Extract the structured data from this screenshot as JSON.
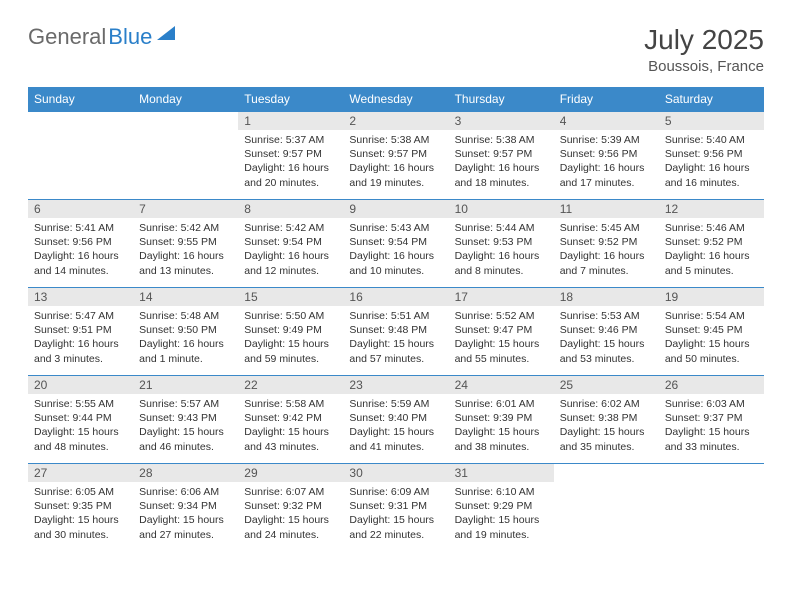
{
  "brand": {
    "part1": "General",
    "part2": "Blue"
  },
  "title": "July 2025",
  "location": "Boussois, France",
  "colors": {
    "header_bg": "#3b89c9",
    "header_text": "#ffffff",
    "daynum_bg": "#e8e8e8",
    "border": "#3b89c9",
    "logo_gray": "#6a6a6a",
    "logo_blue": "#2a7fc9"
  },
  "columns": [
    "Sunday",
    "Monday",
    "Tuesday",
    "Wednesday",
    "Thursday",
    "Friday",
    "Saturday"
  ],
  "weeks": [
    [
      {
        "n": "",
        "lines": []
      },
      {
        "n": "",
        "lines": []
      },
      {
        "n": "1",
        "lines": [
          "Sunrise: 5:37 AM",
          "Sunset: 9:57 PM",
          "Daylight: 16 hours",
          "and 20 minutes."
        ]
      },
      {
        "n": "2",
        "lines": [
          "Sunrise: 5:38 AM",
          "Sunset: 9:57 PM",
          "Daylight: 16 hours",
          "and 19 minutes."
        ]
      },
      {
        "n": "3",
        "lines": [
          "Sunrise: 5:38 AM",
          "Sunset: 9:57 PM",
          "Daylight: 16 hours",
          "and 18 minutes."
        ]
      },
      {
        "n": "4",
        "lines": [
          "Sunrise: 5:39 AM",
          "Sunset: 9:56 PM",
          "Daylight: 16 hours",
          "and 17 minutes."
        ]
      },
      {
        "n": "5",
        "lines": [
          "Sunrise: 5:40 AM",
          "Sunset: 9:56 PM",
          "Daylight: 16 hours",
          "and 16 minutes."
        ]
      }
    ],
    [
      {
        "n": "6",
        "lines": [
          "Sunrise: 5:41 AM",
          "Sunset: 9:56 PM",
          "Daylight: 16 hours",
          "and 14 minutes."
        ]
      },
      {
        "n": "7",
        "lines": [
          "Sunrise: 5:42 AM",
          "Sunset: 9:55 PM",
          "Daylight: 16 hours",
          "and 13 minutes."
        ]
      },
      {
        "n": "8",
        "lines": [
          "Sunrise: 5:42 AM",
          "Sunset: 9:54 PM",
          "Daylight: 16 hours",
          "and 12 minutes."
        ]
      },
      {
        "n": "9",
        "lines": [
          "Sunrise: 5:43 AM",
          "Sunset: 9:54 PM",
          "Daylight: 16 hours",
          "and 10 minutes."
        ]
      },
      {
        "n": "10",
        "lines": [
          "Sunrise: 5:44 AM",
          "Sunset: 9:53 PM",
          "Daylight: 16 hours",
          "and 8 minutes."
        ]
      },
      {
        "n": "11",
        "lines": [
          "Sunrise: 5:45 AM",
          "Sunset: 9:52 PM",
          "Daylight: 16 hours",
          "and 7 minutes."
        ]
      },
      {
        "n": "12",
        "lines": [
          "Sunrise: 5:46 AM",
          "Sunset: 9:52 PM",
          "Daylight: 16 hours",
          "and 5 minutes."
        ]
      }
    ],
    [
      {
        "n": "13",
        "lines": [
          "Sunrise: 5:47 AM",
          "Sunset: 9:51 PM",
          "Daylight: 16 hours",
          "and 3 minutes."
        ]
      },
      {
        "n": "14",
        "lines": [
          "Sunrise: 5:48 AM",
          "Sunset: 9:50 PM",
          "Daylight: 16 hours",
          "and 1 minute."
        ]
      },
      {
        "n": "15",
        "lines": [
          "Sunrise: 5:50 AM",
          "Sunset: 9:49 PM",
          "Daylight: 15 hours",
          "and 59 minutes."
        ]
      },
      {
        "n": "16",
        "lines": [
          "Sunrise: 5:51 AM",
          "Sunset: 9:48 PM",
          "Daylight: 15 hours",
          "and 57 minutes."
        ]
      },
      {
        "n": "17",
        "lines": [
          "Sunrise: 5:52 AM",
          "Sunset: 9:47 PM",
          "Daylight: 15 hours",
          "and 55 minutes."
        ]
      },
      {
        "n": "18",
        "lines": [
          "Sunrise: 5:53 AM",
          "Sunset: 9:46 PM",
          "Daylight: 15 hours",
          "and 53 minutes."
        ]
      },
      {
        "n": "19",
        "lines": [
          "Sunrise: 5:54 AM",
          "Sunset: 9:45 PM",
          "Daylight: 15 hours",
          "and 50 minutes."
        ]
      }
    ],
    [
      {
        "n": "20",
        "lines": [
          "Sunrise: 5:55 AM",
          "Sunset: 9:44 PM",
          "Daylight: 15 hours",
          "and 48 minutes."
        ]
      },
      {
        "n": "21",
        "lines": [
          "Sunrise: 5:57 AM",
          "Sunset: 9:43 PM",
          "Daylight: 15 hours",
          "and 46 minutes."
        ]
      },
      {
        "n": "22",
        "lines": [
          "Sunrise: 5:58 AM",
          "Sunset: 9:42 PM",
          "Daylight: 15 hours",
          "and 43 minutes."
        ]
      },
      {
        "n": "23",
        "lines": [
          "Sunrise: 5:59 AM",
          "Sunset: 9:40 PM",
          "Daylight: 15 hours",
          "and 41 minutes."
        ]
      },
      {
        "n": "24",
        "lines": [
          "Sunrise: 6:01 AM",
          "Sunset: 9:39 PM",
          "Daylight: 15 hours",
          "and 38 minutes."
        ]
      },
      {
        "n": "25",
        "lines": [
          "Sunrise: 6:02 AM",
          "Sunset: 9:38 PM",
          "Daylight: 15 hours",
          "and 35 minutes."
        ]
      },
      {
        "n": "26",
        "lines": [
          "Sunrise: 6:03 AM",
          "Sunset: 9:37 PM",
          "Daylight: 15 hours",
          "and 33 minutes."
        ]
      }
    ],
    [
      {
        "n": "27",
        "lines": [
          "Sunrise: 6:05 AM",
          "Sunset: 9:35 PM",
          "Daylight: 15 hours",
          "and 30 minutes."
        ]
      },
      {
        "n": "28",
        "lines": [
          "Sunrise: 6:06 AM",
          "Sunset: 9:34 PM",
          "Daylight: 15 hours",
          "and 27 minutes."
        ]
      },
      {
        "n": "29",
        "lines": [
          "Sunrise: 6:07 AM",
          "Sunset: 9:32 PM",
          "Daylight: 15 hours",
          "and 24 minutes."
        ]
      },
      {
        "n": "30",
        "lines": [
          "Sunrise: 6:09 AM",
          "Sunset: 9:31 PM",
          "Daylight: 15 hours",
          "and 22 minutes."
        ]
      },
      {
        "n": "31",
        "lines": [
          "Sunrise: 6:10 AM",
          "Sunset: 9:29 PM",
          "Daylight: 15 hours",
          "and 19 minutes."
        ]
      },
      {
        "n": "",
        "lines": []
      },
      {
        "n": "",
        "lines": []
      }
    ]
  ]
}
